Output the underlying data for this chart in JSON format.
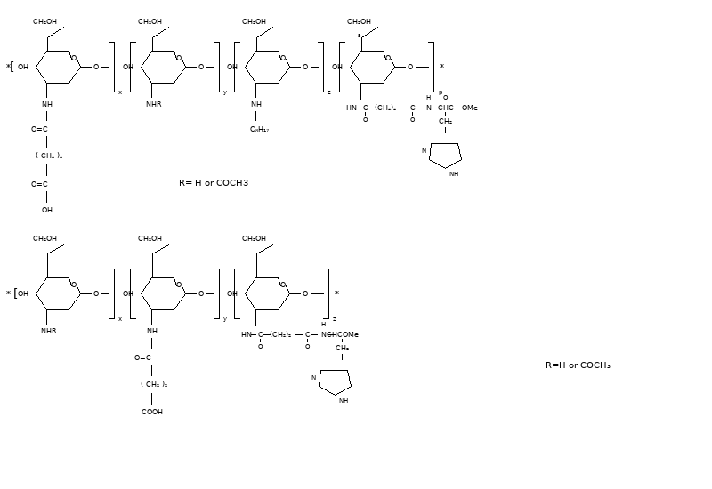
{
  "bg": "#ffffff",
  "fw": 8.0,
  "fh": 5.5,
  "dpi": 100
}
